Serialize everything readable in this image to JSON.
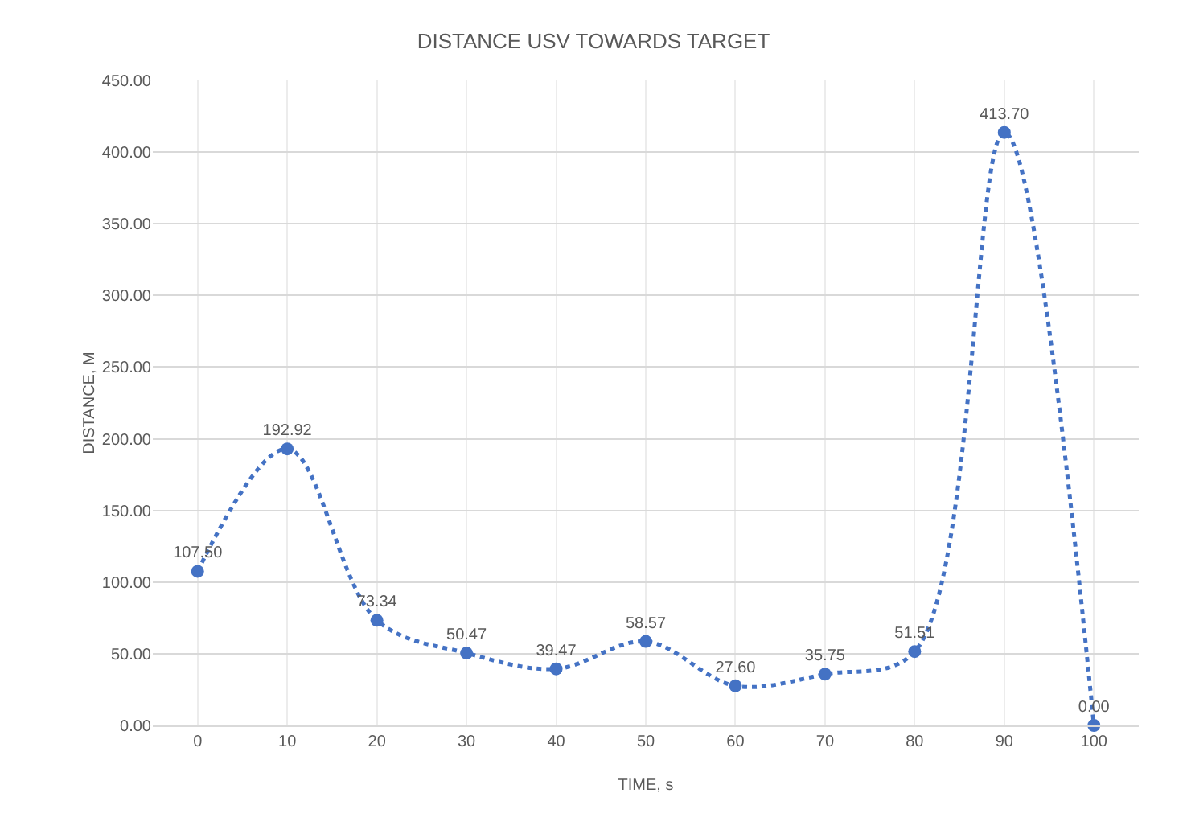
{
  "chart_data": {
    "type": "line",
    "title": "DISTANCE USV TOWARDS TARGET",
    "xlabel": "TIME, s",
    "ylabel": "DISTANCE, M",
    "categories": [
      "0",
      "10",
      "20",
      "30",
      "40",
      "50",
      "60",
      "70",
      "80",
      "90",
      "100"
    ],
    "series": [
      {
        "color": "#4472c4",
        "values": [
          107.5,
          192.92,
          73.34,
          50.47,
          39.47,
          58.57,
          27.6,
          35.75,
          51.51,
          413.7,
          0
        ],
        "value_labels": [
          "107.50",
          "192.92",
          "73.34",
          "50.47",
          "39.47",
          "58.57",
          "27.60",
          "35.75",
          "51.51",
          "413.70",
          "0.00"
        ]
      }
    ],
    "ylim": [
      0,
      450
    ],
    "yticks": [
      {
        "value": 0,
        "label": "0.00"
      },
      {
        "value": 50,
        "label": "50.00"
      },
      {
        "value": 100,
        "label": "100.00"
      },
      {
        "value": 150,
        "label": "150.00"
      },
      {
        "value": 200,
        "label": "200.00"
      },
      {
        "value": 250,
        "label": "250.00"
      },
      {
        "value": 300,
        "label": "300.00"
      },
      {
        "value": 350,
        "label": "350.00"
      },
      {
        "value": 400,
        "label": "400.00"
      },
      {
        "value": 450,
        "label": "450.00"
      }
    ],
    "grid": true,
    "marker": "circle",
    "line_style": "dotted"
  }
}
